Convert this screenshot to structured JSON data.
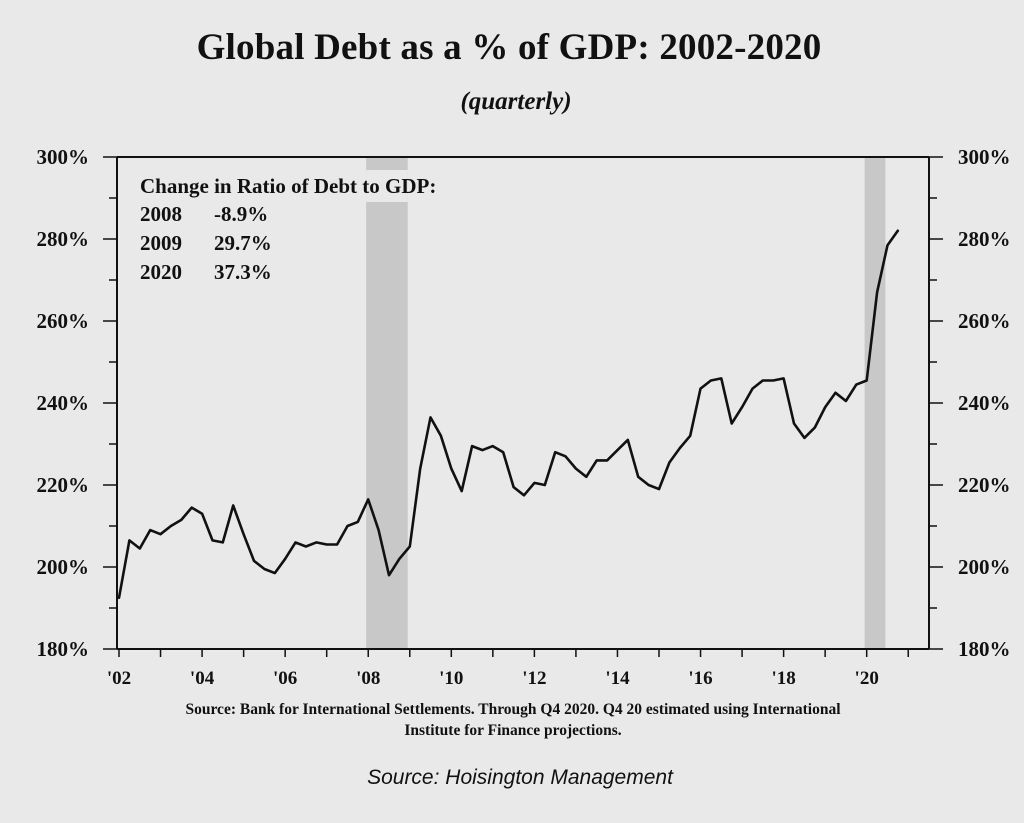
{
  "chart_data": {
    "type": "line",
    "title": "Global Debt as a % of GDP: 2002-2020",
    "subtitle": "(quarterly)",
    "ylim": [
      180,
      300
    ],
    "yticks": [
      "180%",
      "200%",
      "220%",
      "240%",
      "260%",
      "280%",
      "300%"
    ],
    "ytick_values": [
      180,
      200,
      220,
      240,
      260,
      280,
      300
    ],
    "xlim": [
      2002,
      2021.5
    ],
    "xticks": [
      "'02",
      "'04",
      "'06",
      "'08",
      "'10",
      "'12",
      "'14",
      "'16",
      "'18",
      "'20"
    ],
    "xtick_values": [
      2002,
      2004,
      2006,
      2008,
      2010,
      2012,
      2014,
      2016,
      2018,
      2020
    ],
    "dual_y_axis": true,
    "grid": false,
    "recession_shading": [
      {
        "start": 2007.95,
        "end": 2008.95
      },
      {
        "start": 2019.95,
        "end": 2020.45
      }
    ],
    "annotation": {
      "heading": "Change in Ratio of Debt to GDP:",
      "rows": [
        {
          "year": "2008",
          "value": "-8.9%"
        },
        {
          "year": "2009",
          "value": "29.7%"
        },
        {
          "year": "2020",
          "value": "37.3%"
        }
      ]
    },
    "series": [
      {
        "x": [
          2002.0,
          2002.25,
          2002.5,
          2002.75,
          2003.0,
          2003.25,
          2003.5,
          2003.75,
          2004.0,
          2004.25,
          2004.5,
          2004.75,
          2005.0,
          2005.25,
          2005.5,
          2005.75,
          2006.0,
          2006.25,
          2006.5,
          2006.75,
          2007.0,
          2007.25,
          2007.5,
          2007.75,
          2008.0,
          2008.25,
          2008.5,
          2008.75,
          2009.0,
          2009.25,
          2009.5,
          2009.75,
          2010.0,
          2010.25,
          2010.5,
          2010.75,
          2011.0,
          2011.25,
          2011.5,
          2011.75,
          2012.0,
          2012.25,
          2012.5,
          2012.75,
          2013.0,
          2013.25,
          2013.5,
          2013.75,
          2014.0,
          2014.25,
          2014.5,
          2014.75,
          2015.0,
          2015.25,
          2015.5,
          2015.75,
          2016.0,
          2016.25,
          2016.5,
          2016.75,
          2017.0,
          2017.25,
          2017.5,
          2017.75,
          2018.0,
          2018.25,
          2018.5,
          2018.75,
          2019.0,
          2019.25,
          2019.5,
          2019.75,
          2020.0,
          2020.25,
          2020.5,
          2020.75
        ],
        "values": [
          192.5,
          206.5,
          204.5,
          209.0,
          208.0,
          210.0,
          211.5,
          214.5,
          213.0,
          206.5,
          206.0,
          215.0,
          208.0,
          201.5,
          199.5,
          198.5,
          202.0,
          206.0,
          205.0,
          206.0,
          205.5,
          205.5,
          210.0,
          211.0,
          216.5,
          209.0,
          198.0,
          202.0,
          205.0,
          224.0,
          236.5,
          232.0,
          224.0,
          218.5,
          229.5,
          228.5,
          229.5,
          228.0,
          219.5,
          217.5,
          220.5,
          220.0,
          228.0,
          227.0,
          224.0,
          222.0,
          226.0,
          226.0,
          228.5,
          231.0,
          222.0,
          220.0,
          219.0,
          225.5,
          229.0,
          232.0,
          243.5,
          245.5,
          246.0,
          235.0,
          239.0,
          243.5,
          245.5,
          245.5,
          246.0,
          235.0,
          231.5,
          234.0,
          239.0,
          242.5,
          240.5,
          244.5,
          245.5,
          267.0,
          278.5,
          282.0
        ]
      }
    ]
  },
  "source_note": {
    "line1": "Source:  Bank for International Settlements. Through Q4 2020. Q4 20 estimated using International",
    "line2": "Institute for Finance projections."
  },
  "credit": "Source: Hoisington Management"
}
